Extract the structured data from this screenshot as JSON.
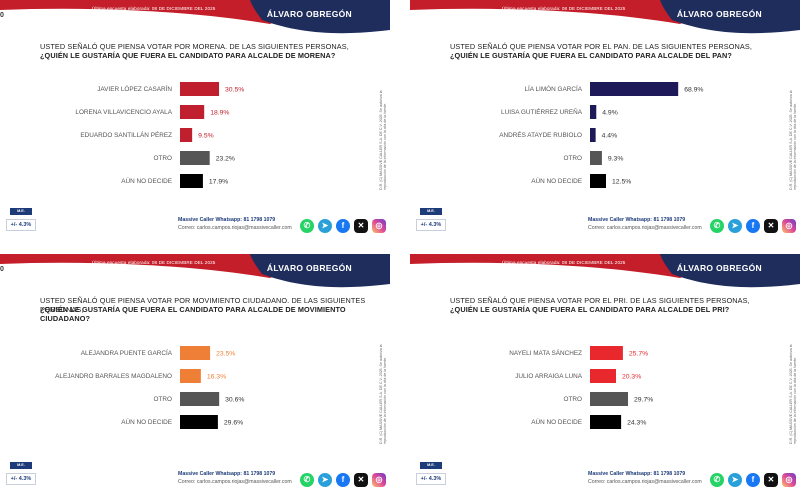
{
  "colors": {
    "header_red": "#c41e2a",
    "header_navy": "#1f2d5c",
    "morena": "#c0202e",
    "pan": "#1e1a5a",
    "mc": "#ef7f37",
    "pri": "#e8282c",
    "otro": "#555555",
    "no_decide": "#000000",
    "label": "#555555"
  },
  "panels": [
    {
      "survey_date": "Última encuesta elaborada: 08 DE DICIEMBRE DEL 2025",
      "city": "ÁLVARO OBREGÓN",
      "question_line1": "USTED SEÑALÓ QUE PIENSA VOTAR POR MORENA. DE LAS SIGUIENTES PERSONAS,",
      "question_line2": "¿QUIÉN LE GUSTARÍA QUE FUERA EL CANDIDATO PARA ALCALDE DE MORENA?",
      "mu_label": "M.E.",
      "moe": "+/- 4.3%",
      "contact_whatsapp": "Massive Caller Whatsapp: 81 1798 1079",
      "contact_email": "Correo: carlos.campos.riojas@massivecaller.com",
      "note": "D.R. (C) MASSIVE CALLER S.A. DE C.V. 2025. Se autoriza la reproducción de la información con la cita de la fuente.",
      "edge_mark": "0",
      "chart_data": {
        "type": "bar",
        "orientation": "horizontal",
        "title": "¿QUIÉN LE GUSTARÍA QUE FUERA EL CANDIDATO PARA ALCALDE DE MORENA?",
        "categories": [
          "JAVIER LÓPEZ CASARÍN",
          "LORENA VILLAVICENCIO AYALA",
          "EDUARDO SANTILLÁN PÉREZ",
          "OTRO",
          "AÚN NO DECIDE"
        ],
        "values": [
          30.5,
          18.9,
          9.5,
          23.2,
          17.9
        ],
        "value_labels": [
          "30.5%",
          "18.9%",
          "9.5%",
          "23.2%",
          "17.9%"
        ],
        "bar_colors": [
          "#c0202e",
          "#c0202e",
          "#c0202e",
          "#555555",
          "#000000"
        ],
        "label_colors": [
          "#c0202e",
          "#c0202e",
          "#c0202e",
          "#333333",
          "#333333"
        ],
        "xlim": [
          0,
          100
        ]
      }
    },
    {
      "survey_date": "Última encuesta elaborada: 08 DE DICIEMBRE DEL 2025",
      "city": "ÁLVARO OBREGÓN",
      "question_line1": "USTED SEÑALÓ QUE PIENSA VOTAR POR EL PAN. DE LAS SIGUIENTES PERSONAS,",
      "question_line2": "¿QUIÉN LE GUSTARÍA QUE FUERA EL CANDIDATO PARA ALCALDE DEL PAN?",
      "mu_label": "M.E.",
      "moe": "+/- 4.3%",
      "contact_whatsapp": "Massive Caller Whatsapp: 81 1798 1079",
      "contact_email": "Correo: carlos.campos.riojas@massivecaller.com",
      "note": "D.R. (C) MASSIVE CALLER S.A. DE C.V. 2025. Se autoriza la reproducción de la información con la cita de la fuente.",
      "edge_mark": "",
      "chart_data": {
        "type": "bar",
        "orientation": "horizontal",
        "title": "¿QUIÉN LE GUSTARÍA QUE FUERA EL CANDIDATO PARA ALCALDE DEL PAN?",
        "categories": [
          "LÍA LIMÓN GARCÍA",
          "LUISA GUTIÉRREZ UREÑA",
          "ANDRÉS ATAYDE RUBIOLO",
          "OTRO",
          "AÚN NO DECIDE"
        ],
        "values": [
          68.9,
          4.9,
          4.4,
          9.3,
          12.5
        ],
        "value_labels": [
          "68.9%",
          "4.9%",
          "4.4%",
          "9.3%",
          "12.5%"
        ],
        "bar_colors": [
          "#1e1a5a",
          "#1e1a5a",
          "#1e1a5a",
          "#555555",
          "#000000"
        ],
        "label_colors": [
          "#333333",
          "#333333",
          "#333333",
          "#333333",
          "#333333"
        ],
        "xlim": [
          0,
          100
        ]
      }
    },
    {
      "survey_date": "Última encuesta elaborada: 08 DE DICIEMBRE DEL 2025",
      "city": "ÁLVARO OBREGÓN",
      "question_line1": "USTED SEÑALÓ QUE PIENSA VOTAR POR MOVIMIENTO CIUDADANO. DE LAS SIGUIENTES PERSONAS,",
      "question_line2": "¿QUIÉN LE GUSTARÍA QUE FUERA EL CANDIDATO PARA ALCALDE DE MOVIMIENTO CIUDADANO?",
      "mu_label": "M.E.",
      "moe": "+/- 4.3%",
      "contact_whatsapp": "Massive Caller Whatsapp: 81 1798 1079",
      "contact_email": "Correo: carlos.campos.riojas@massivecaller.com",
      "note": "D.R. (C) MASSIVE CALLER S.A. DE C.V. 2025. Se autoriza la reproducción de la información con la cita de la fuente.",
      "edge_mark": "0",
      "chart_data": {
        "type": "bar",
        "orientation": "horizontal",
        "title": "¿QUIÉN LE GUSTARÍA QUE FUERA EL CANDIDATO PARA ALCALDE DE MOVIMIENTO CIUDADANO?",
        "categories": [
          "ALEJANDRA PUENTE GARCÍA",
          "ALEJANDRO BARRALES MAGDALENO",
          "OTRO",
          "AÚN NO DECIDE"
        ],
        "values": [
          23.5,
          16.3,
          30.6,
          29.6
        ],
        "value_labels": [
          "23.5%",
          "16.3%",
          "30.6%",
          "29.6%"
        ],
        "bar_colors": [
          "#ef7f37",
          "#ef7f37",
          "#555555",
          "#000000"
        ],
        "label_colors": [
          "#ef7f37",
          "#ef7f37",
          "#333333",
          "#333333"
        ],
        "xlim": [
          0,
          100
        ]
      }
    },
    {
      "survey_date": "Última encuesta elaborada: 08 DE DICIEMBRE DEL 2025",
      "city": "ÁLVARO OBREGÓN",
      "question_line1": "USTED SEÑALÓ QUE PIENSA VOTAR POR EL PRI. DE LAS SIGUIENTES PERSONAS,",
      "question_line2": "¿QUIÉN LE GUSTARÍA QUE FUERA EL CANDIDATO PARA ALCALDE DEL PRI?",
      "mu_label": "M.E.",
      "moe": "+/- 4.3%",
      "contact_whatsapp": "Massive Caller Whatsapp: 81 1798 1079",
      "contact_email": "Correo: carlos.campos.riojas@massivecaller.com",
      "note": "D.R. (C) MASSIVE CALLER S.A. DE C.V. 2025. Se autoriza la reproducción de la información con la cita de la fuente.",
      "edge_mark": "",
      "chart_data": {
        "type": "bar",
        "orientation": "horizontal",
        "title": "¿QUIÉN LE GUSTARÍA QUE FUERA EL CANDIDATO PARA ALCALDE DEL PRI?",
        "categories": [
          "NAYELI MATA SÁNCHEZ",
          "JULIO ARRAIGA LUNA",
          "OTRO",
          "AÚN NO DECIDE"
        ],
        "values": [
          25.7,
          20.3,
          29.7,
          24.3
        ],
        "value_labels": [
          "25.7%",
          "20.3%",
          "29.7%",
          "24.3%"
        ],
        "bar_colors": [
          "#e8282c",
          "#e8282c",
          "#555555",
          "#000000"
        ],
        "label_colors": [
          "#e8282c",
          "#e8282c",
          "#333333",
          "#333333"
        ],
        "xlim": [
          0,
          100
        ]
      }
    }
  ],
  "social": {
    "whatsapp_icon": "whatsapp-icon",
    "telegram_icon": "telegram-icon",
    "facebook_icon": "facebook-icon",
    "x_icon": "x-icon",
    "instagram_icon": "instagram-icon"
  }
}
